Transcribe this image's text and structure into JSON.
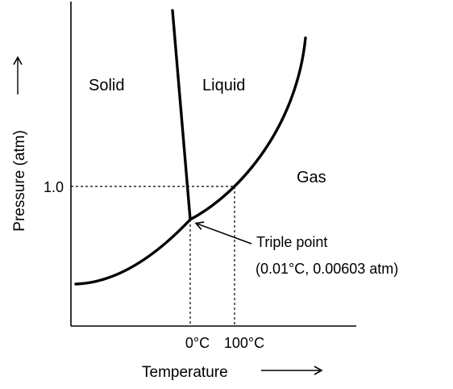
{
  "diagram": {
    "regions": {
      "solid": "Solid",
      "liquid": "Liquid",
      "gas": "Gas"
    },
    "y_axis": {
      "title": "Pressure (atm)",
      "tick_label": "1.0"
    },
    "x_axis": {
      "title": "Temperature",
      "tick_labels": [
        "0°C",
        "100°C"
      ]
    },
    "annotation": {
      "line1": "Triple point",
      "line2": "(0.01°C, 0.00603 atm)"
    },
    "colors": {
      "ink": "#000000",
      "background": "#ffffff"
    }
  }
}
